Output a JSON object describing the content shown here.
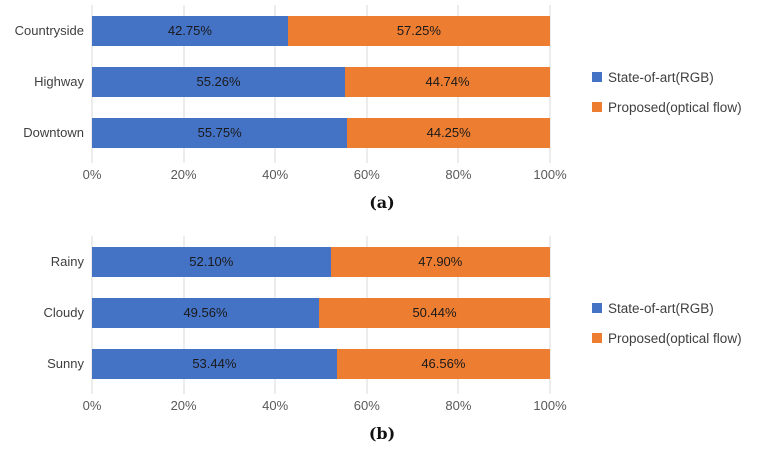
{
  "colors": {
    "series_blue": "#4472C4",
    "series_orange": "#ED7D31",
    "gridline": "#D9D9D9",
    "category_text": "#3f3f3f",
    "axis_text": "#595959",
    "value_text": "#1a1a1a"
  },
  "chart_data": [
    {
      "type": "bar",
      "orientation": "horizontal",
      "stacked": true,
      "caption": "(a)",
      "categories": [
        "Countryside",
        "Highway",
        "Downtown"
      ],
      "series": [
        {
          "name": "State-of-art(RGB)",
          "color": "#4472C4",
          "values": [
            42.75,
            55.26,
            55.75
          ]
        },
        {
          "name": "Proposed(optical flow)",
          "color": "#ED7D31",
          "values": [
            57.25,
            44.74,
            44.25
          ]
        }
      ],
      "data_labels": [
        [
          "42.75%",
          "57.25%"
        ],
        [
          "55.26%",
          "44.74%"
        ],
        [
          "55.75%",
          "44.25%"
        ]
      ],
      "xlim": [
        0,
        100
      ],
      "x_ticks": [
        "0%",
        "20%",
        "40%",
        "60%",
        "80%",
        "100%"
      ],
      "grid": true,
      "legend_position": "right"
    },
    {
      "type": "bar",
      "orientation": "horizontal",
      "stacked": true,
      "caption": "(b)",
      "categories": [
        "Rainy",
        "Cloudy",
        "Sunny"
      ],
      "series": [
        {
          "name": "State-of-art(RGB)",
          "color": "#4472C4",
          "values": [
            52.1,
            49.56,
            53.44
          ]
        },
        {
          "name": "Proposed(optical flow)",
          "color": "#ED7D31",
          "values": [
            47.9,
            50.44,
            46.56
          ]
        }
      ],
      "data_labels": [
        [
          "52.10%",
          "47.90%"
        ],
        [
          "49.56%",
          "50.44%"
        ],
        [
          "53.44%",
          "46.56%"
        ]
      ],
      "xlim": [
        0,
        100
      ],
      "x_ticks": [
        "0%",
        "20%",
        "40%",
        "60%",
        "80%",
        "100%"
      ],
      "grid": true,
      "legend_position": "right"
    }
  ]
}
